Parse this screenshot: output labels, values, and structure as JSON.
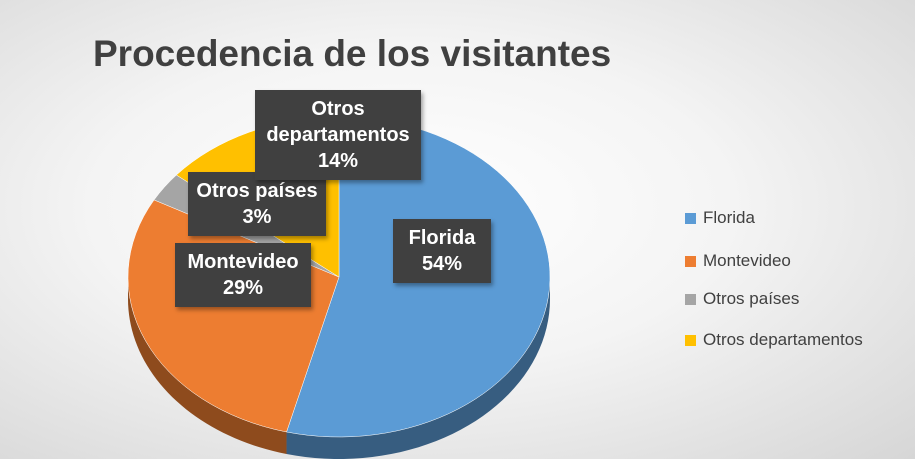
{
  "chart_data": {
    "type": "pie",
    "title": "Procedencia de los visitantes",
    "categories": [
      "Florida",
      "Montevideo",
      "Otros países",
      "Otros departamentos"
    ],
    "values": [
      54,
      29,
      3,
      14
    ],
    "value_labels": [
      "54%",
      "29%",
      "3%",
      "14%"
    ],
    "colors": [
      "#5b9bd5",
      "#ed7d31",
      "#a5a5a5",
      "#ffc000"
    ],
    "legend": "right"
  }
}
